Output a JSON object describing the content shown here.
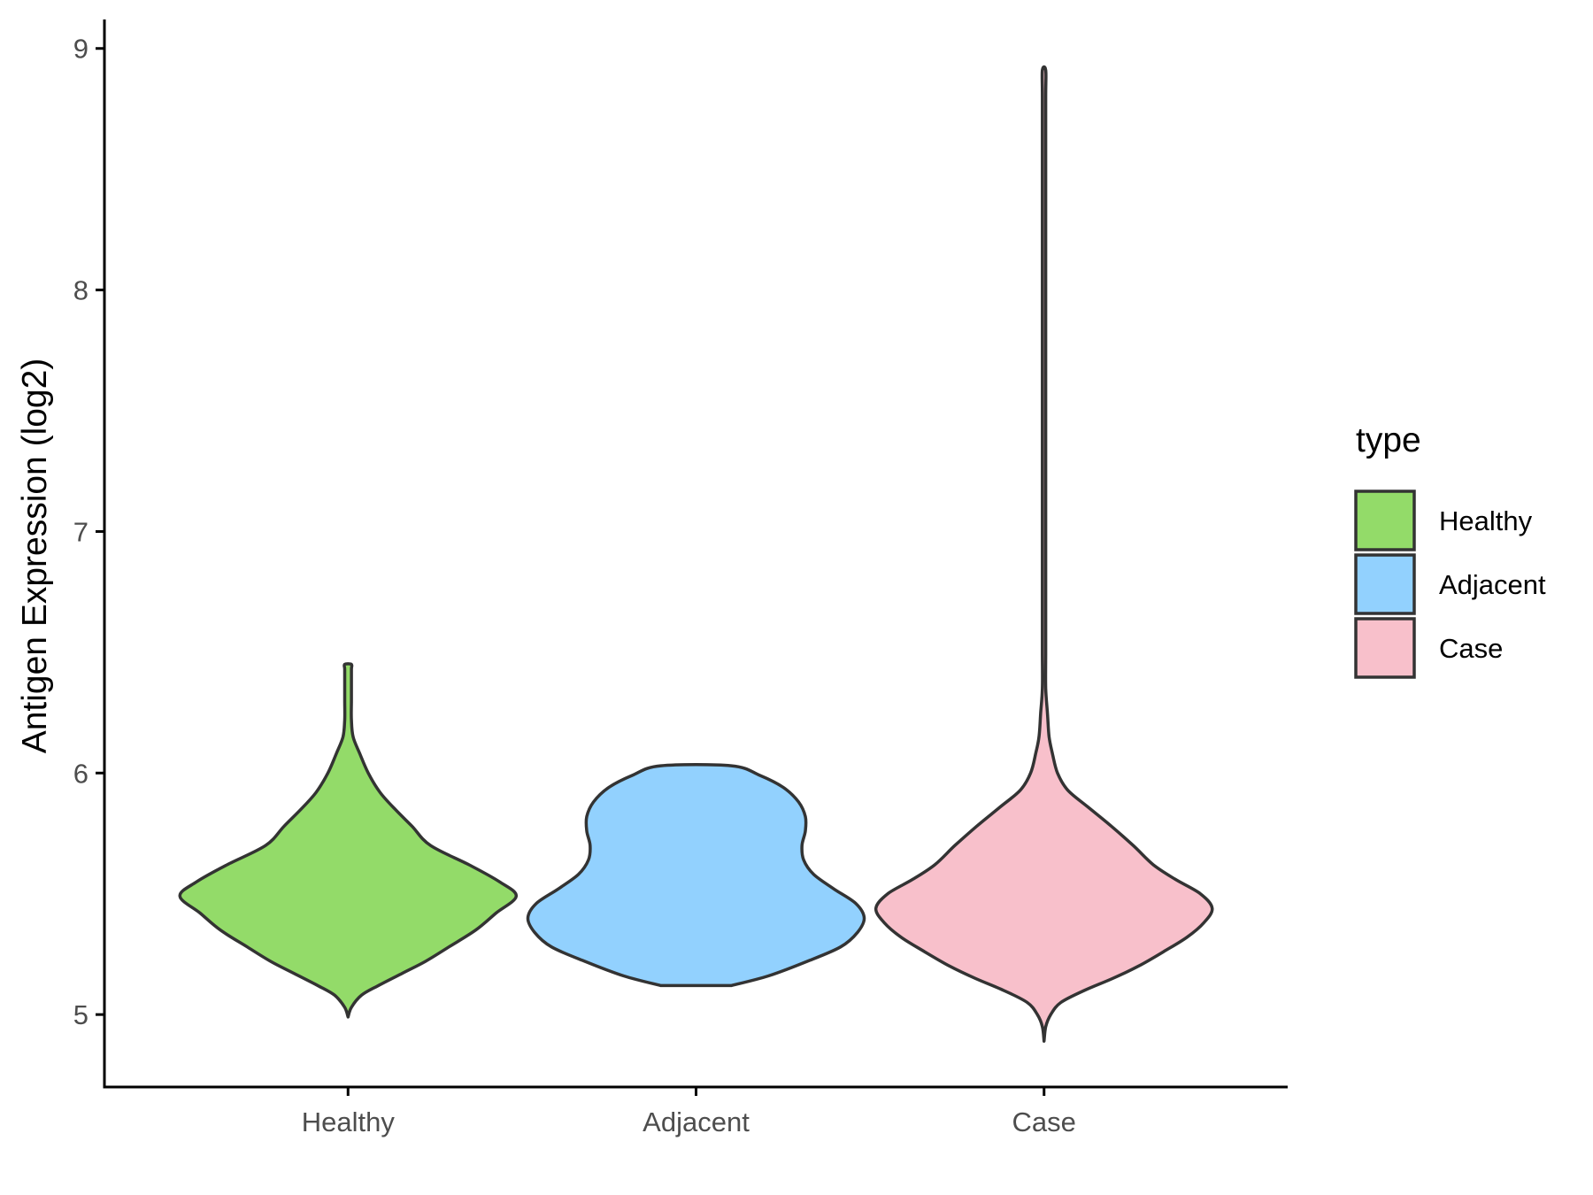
{
  "chart_data": {
    "type": "violin",
    "title": "",
    "xlabel": "",
    "ylabel": "Antigen Expression (log2)",
    "categories": [
      "Healthy",
      "Adjacent",
      "Case"
    ],
    "ylim": [
      4.7,
      9.12
    ],
    "yticks": [
      5,
      6,
      7,
      8,
      9
    ],
    "grid": false,
    "legend": {
      "title": "type",
      "position": "right",
      "entries": [
        "Healthy",
        "Adjacent",
        "Case"
      ]
    },
    "colors": {
      "Healthy": "#93DB69",
      "Adjacent": "#92D1FE",
      "Case": "#F8C0CB"
    },
    "series": [
      {
        "category": "Healthy",
        "min": 4.99,
        "max": 6.45,
        "profile": [
          [
            4.99,
            0.0
          ],
          [
            5.03,
            0.02
          ],
          [
            5.08,
            0.08
          ],
          [
            5.12,
            0.18
          ],
          [
            5.17,
            0.32
          ],
          [
            5.22,
            0.46
          ],
          [
            5.28,
            0.6
          ],
          [
            5.35,
            0.76
          ],
          [
            5.42,
            0.88
          ],
          [
            5.49,
            1.0
          ],
          [
            5.55,
            0.9
          ],
          [
            5.62,
            0.72
          ],
          [
            5.7,
            0.49
          ],
          [
            5.78,
            0.38
          ],
          [
            5.85,
            0.28
          ],
          [
            5.92,
            0.19
          ],
          [
            6.0,
            0.12
          ],
          [
            6.08,
            0.07
          ],
          [
            6.15,
            0.03
          ],
          [
            6.22,
            0.02
          ],
          [
            6.3,
            0.02
          ],
          [
            6.38,
            0.02
          ],
          [
            6.43,
            0.02
          ],
          [
            6.45,
            0.02
          ]
        ]
      },
      {
        "category": "Adjacent",
        "min": 5.12,
        "max": 6.03,
        "profile": [
          [
            5.12,
            0.21
          ],
          [
            5.16,
            0.43
          ],
          [
            5.22,
            0.66
          ],
          [
            5.28,
            0.86
          ],
          [
            5.34,
            0.96
          ],
          [
            5.4,
            1.0
          ],
          [
            5.46,
            0.95
          ],
          [
            5.52,
            0.82
          ],
          [
            5.58,
            0.7
          ],
          [
            5.64,
            0.64
          ],
          [
            5.7,
            0.63
          ],
          [
            5.76,
            0.65
          ],
          [
            5.82,
            0.65
          ],
          [
            5.88,
            0.61
          ],
          [
            5.94,
            0.52
          ],
          [
            5.99,
            0.38
          ],
          [
            6.03,
            0.21
          ]
        ]
      },
      {
        "category": "Case",
        "min": 4.89,
        "max": 8.91,
        "profile": [
          [
            4.89,
            0.0
          ],
          [
            4.95,
            0.01
          ],
          [
            5.0,
            0.04
          ],
          [
            5.05,
            0.1
          ],
          [
            5.1,
            0.24
          ],
          [
            5.15,
            0.41
          ],
          [
            5.2,
            0.56
          ],
          [
            5.26,
            0.71
          ],
          [
            5.32,
            0.85
          ],
          [
            5.38,
            0.95
          ],
          [
            5.44,
            1.0
          ],
          [
            5.5,
            0.93
          ],
          [
            5.56,
            0.78
          ],
          [
            5.62,
            0.65
          ],
          [
            5.7,
            0.53
          ],
          [
            5.78,
            0.4
          ],
          [
            5.86,
            0.26
          ],
          [
            5.93,
            0.14
          ],
          [
            6.0,
            0.08
          ],
          [
            6.08,
            0.05
          ],
          [
            6.15,
            0.03
          ],
          [
            6.25,
            0.02
          ],
          [
            6.35,
            0.01
          ],
          [
            6.5,
            0.01
          ],
          [
            6.7,
            0.01
          ],
          [
            6.82,
            0.01
          ],
          [
            6.95,
            0.01
          ],
          [
            7.2,
            0.01
          ],
          [
            7.5,
            0.01
          ],
          [
            7.7,
            0.01
          ],
          [
            7.9,
            0.01
          ],
          [
            8.2,
            0.01
          ],
          [
            8.5,
            0.01
          ],
          [
            8.8,
            0.01
          ],
          [
            8.91,
            0.01
          ]
        ]
      }
    ]
  }
}
